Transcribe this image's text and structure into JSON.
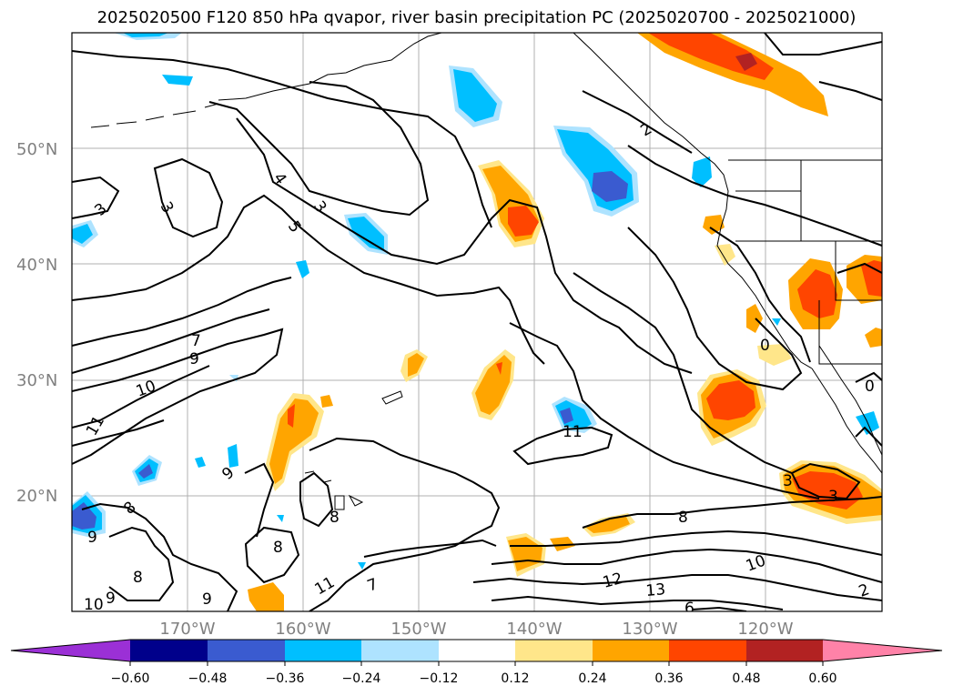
{
  "title": "2025020500 F120 850 hPa qvapor, river basin precipitation PC (2025020700 - 2025021000)",
  "colors": {
    "purple": "#9b30d6",
    "navy": "#00008b",
    "royal_blue": "#3a5bd0",
    "deep_sky_blue": "#00bfff",
    "light_blue": "#aee3ff",
    "white": "#ffffff",
    "light_yellow": "#ffe68a",
    "orange": "#ffa500",
    "orange_red": "#ff4500",
    "firebrick": "#b22222",
    "pink": "#ff82a8",
    "grid": "#b0b0b0",
    "tick_label": "#808080"
  },
  "lat_labels": [
    "50°N",
    "40°N",
    "30°N",
    "20°N"
  ],
  "lon_labels": [
    "170°W",
    "160°W",
    "150°W",
    "140°W",
    "130°W",
    "120°W"
  ],
  "colorbar": {
    "boundaries": [
      "−0.60",
      "−0.48",
      "−0.36",
      "−0.24",
      "−0.12",
      "0.12",
      "0.24",
      "0.36",
      "0.48",
      "0.60"
    ],
    "extend": "both"
  },
  "contour_labels": [
    "3",
    "3",
    "4",
    "5",
    "3",
    "2",
    "7",
    "9",
    "10",
    "11",
    "9",
    "8",
    "9",
    "8",
    "10",
    "9",
    "8",
    "8",
    "9",
    "11",
    "7",
    "11",
    "12",
    "13",
    "6",
    "8",
    "10",
    "2",
    "3",
    "3",
    "0"
  ]
}
